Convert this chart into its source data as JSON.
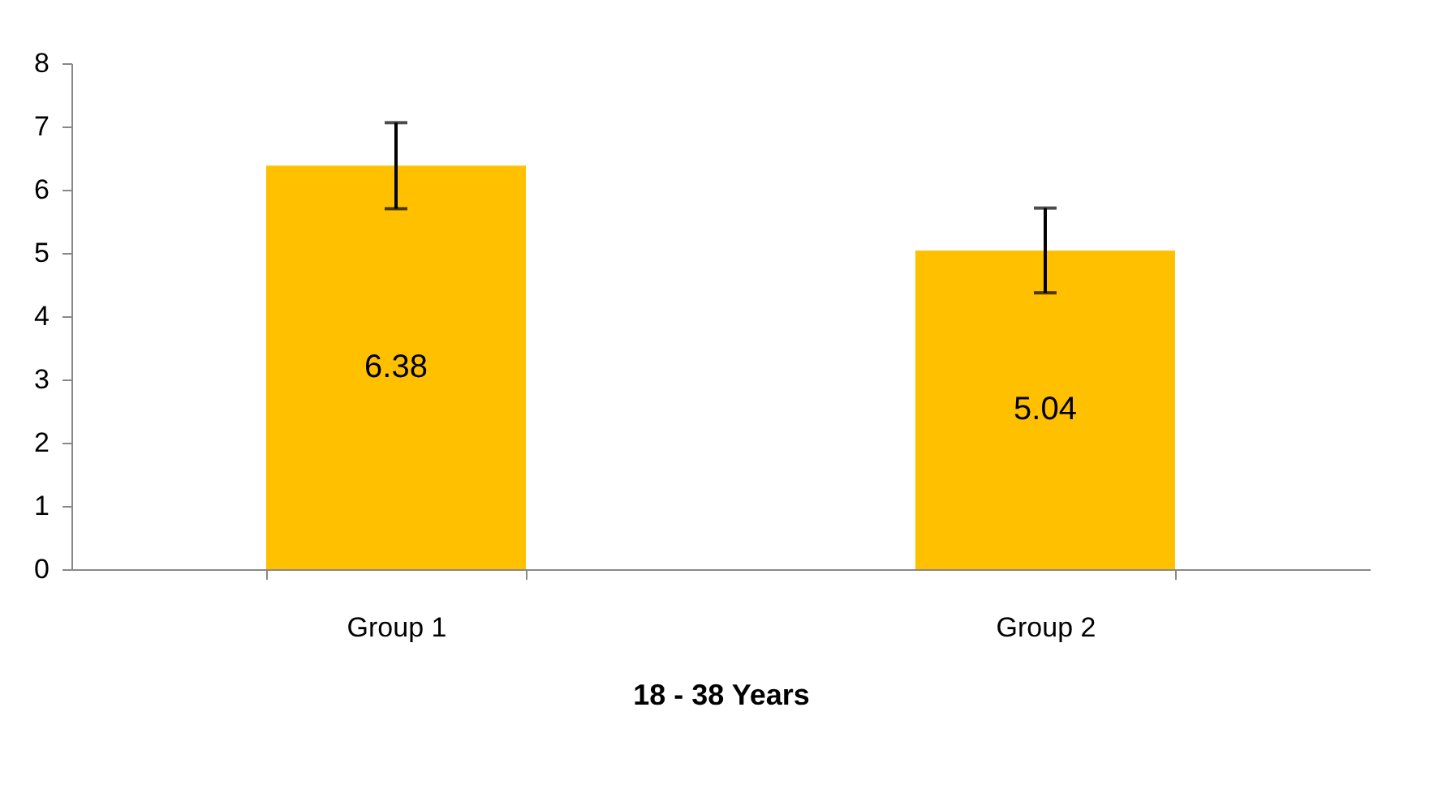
{
  "chart_data": {
    "type": "bar",
    "xlabel": "18 - 38 Years",
    "categories": [
      "Group 1",
      "Group 2"
    ],
    "values": [
      6.38,
      5.04
    ],
    "errors": [
      0.68,
      0.67
    ],
    "color": "#ffc000",
    "data_labels": true,
    "ylim": [
      0,
      8
    ],
    "yticks": [
      0,
      1,
      2,
      3,
      4,
      5,
      6,
      7,
      8
    ],
    "grid": false
  }
}
